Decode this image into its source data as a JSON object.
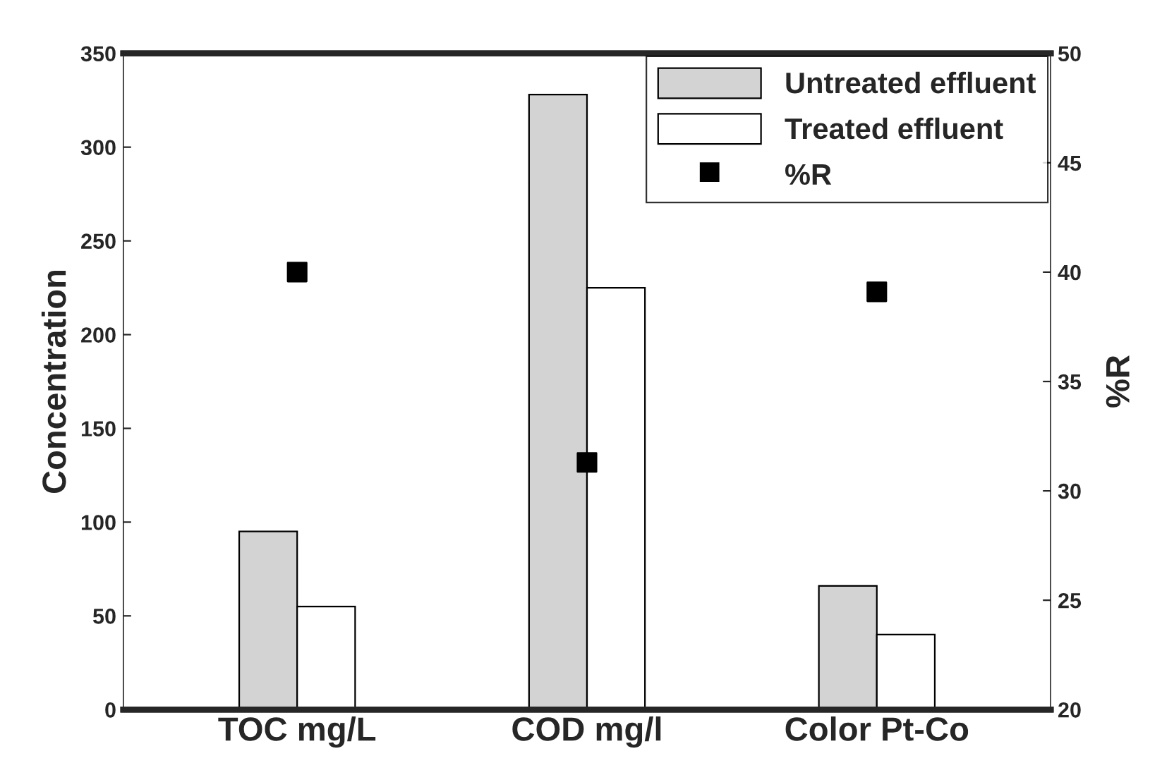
{
  "chart_data": {
    "type": "bar",
    "xlabel": null,
    "ylabel": "Concentration",
    "y2label": "%R",
    "categories": [
      "TOC mg/L",
      "COD mg/l",
      "Color Pt-Co"
    ],
    "series": [
      {
        "name": "Untreated effluent",
        "color": "#d3d3d3",
        "values": [
          95,
          328,
          66
        ]
      },
      {
        "name": "Treated effluent",
        "color": "#ffffff",
        "values": [
          55,
          225,
          40
        ]
      },
      {
        "name": "%R",
        "type": "scatter",
        "axis": "y2",
        "color": "#000000",
        "marker": "square",
        "values": [
          40,
          31.3,
          39.1
        ]
      }
    ],
    "ylim": [
      0,
      350
    ],
    "yticks": [
      0,
      50,
      100,
      150,
      200,
      250,
      300,
      350
    ],
    "y2lim": [
      20,
      50
    ],
    "y2ticks": [
      20,
      25,
      30,
      35,
      40,
      45,
      50
    ],
    "legend": "top right",
    "grid": false
  }
}
